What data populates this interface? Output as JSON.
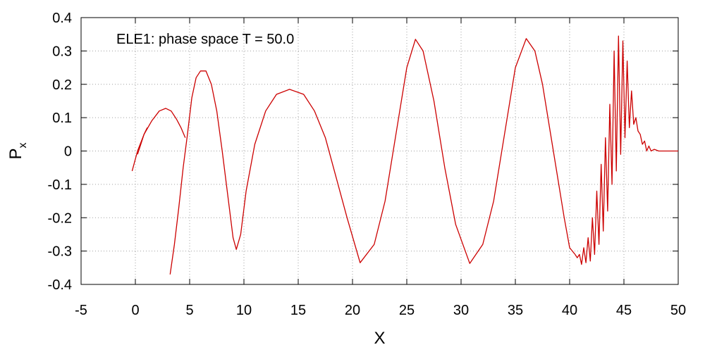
{
  "chart_data": {
    "type": "line",
    "title": "",
    "xlabel": "X",
    "ylabel": "P",
    "ylabel_subscript": "x",
    "xlim": [
      -5,
      50
    ],
    "ylim": [
      -0.4,
      0.4
    ],
    "xticks": [
      -5,
      0,
      5,
      10,
      15,
      20,
      25,
      30,
      35,
      40,
      45,
      50
    ],
    "xtick_labels": [
      "-5",
      "0",
      "5",
      "10",
      "15",
      "20",
      "25",
      "30",
      "35",
      "40",
      "45",
      "50"
    ],
    "yticks": [
      -0.4,
      -0.3,
      -0.2,
      -0.1,
      0,
      0.1,
      0.2,
      0.3,
      0.4
    ],
    "ytick_labels": [
      "-0.4",
      "-0.3",
      "-0.2",
      "-0.1",
      "0",
      "0.1",
      "0.2",
      "0.3",
      "0.4"
    ],
    "grid": true,
    "legend_position": "top-left",
    "series": [
      {
        "name": "ELE1: phase space T = 50.0",
        "color": "#cc0000",
        "segments": [
          {
            "x": [
              -0.3,
              0.2,
              0.8,
              1.5,
              2.2,
              2.8,
              3.3,
              3.8,
              4.2,
              4.6
            ],
            "y": [
              -0.06,
              0.0,
              0.05,
              0.09,
              0.12,
              0.128,
              0.12,
              0.095,
              0.07,
              0.04
            ]
          },
          {
            "x": [
              3.2,
              3.6,
              4.0,
              4.4,
              4.8,
              5.2,
              5.6,
              6.0,
              6.5,
              7.0,
              7.5,
              8.0,
              8.5,
              9.0,
              9.3,
              9.7,
              10.2,
              11.0,
              12.0,
              13.0,
              14.2,
              15.5,
              16.5,
              17.5,
              18.5,
              19.5,
              20.7,
              22.0,
              23.0,
              24.0,
              25.0,
              25.8,
              26.5,
              27.5,
              28.5,
              29.5,
              30.8,
              32.0,
              33.0,
              34.0,
              35.0,
              36.0,
              36.8,
              37.5,
              38.5,
              39.5,
              40.0,
              40.5
            ],
            "y": [
              -0.37,
              -0.28,
              -0.17,
              -0.05,
              0.05,
              0.16,
              0.22,
              0.24,
              0.24,
              0.2,
              0.12,
              0.0,
              -0.13,
              -0.26,
              -0.295,
              -0.25,
              -0.12,
              0.02,
              0.12,
              0.17,
              0.185,
              0.17,
              0.12,
              0.04,
              -0.08,
              -0.2,
              -0.335,
              -0.28,
              -0.15,
              0.05,
              0.25,
              0.335,
              0.3,
              0.15,
              -0.05,
              -0.22,
              -0.337,
              -0.28,
              -0.15,
              0.05,
              0.25,
              0.337,
              0.3,
              0.2,
              0.0,
              -0.2,
              -0.29,
              -0.31
            ]
          },
          {
            "x": [
              40.5,
              40.7,
              40.9,
              41.1,
              41.3,
              41.5,
              41.7,
              41.9,
              42.1,
              42.3,
              42.5,
              42.7,
              42.9,
              43.1,
              43.3,
              43.5,
              43.7,
              43.9,
              44.1,
              44.3,
              44.5,
              44.7,
              44.9,
              45.1,
              45.3,
              45.5,
              45.7,
              45.9,
              46.1,
              46.3,
              46.5,
              46.7,
              46.9,
              47.1,
              47.3,
              47.5,
              47.8,
              48.2,
              48.6,
              49.0,
              49.5,
              50.0
            ],
            "y": [
              -0.31,
              -0.32,
              -0.31,
              -0.34,
              -0.29,
              -0.335,
              -0.26,
              -0.33,
              -0.2,
              -0.31,
              -0.12,
              -0.28,
              -0.04,
              -0.24,
              0.04,
              -0.18,
              0.14,
              -0.1,
              0.3,
              -0.06,
              0.345,
              -0.01,
              0.33,
              0.04,
              0.27,
              0.07,
              0.18,
              0.08,
              0.1,
              0.06,
              0.05,
              0.02,
              0.03,
              0.0,
              0.015,
              0.0,
              0.005,
              0.0,
              0.0,
              0.0,
              0.0,
              0.0
            ]
          },
          {
            "x": [
              0.2,
              0.5,
              0.8,
              1.1
            ],
            "y": [
              -0.01,
              0.02,
              0.05,
              0.07
            ]
          }
        ]
      }
    ]
  }
}
